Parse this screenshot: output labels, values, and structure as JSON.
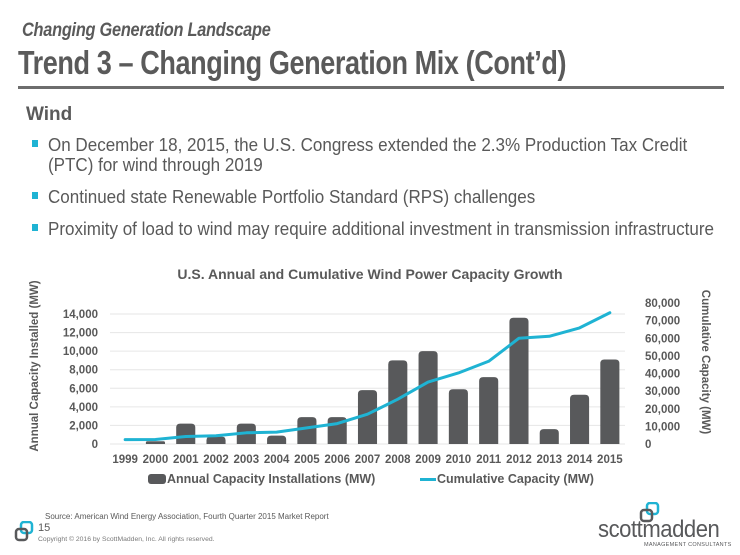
{
  "header": {
    "subtitle": "Changing Generation Landscape",
    "title": "Trend 3 – Changing Generation Mix (Cont’d)"
  },
  "section": {
    "heading": "Wind",
    "bullets": [
      "On December 18, 2015, the U.S. Congress extended the 2.3% Production Tax Credit (PTC) for wind through 2019",
      "Continued state Renewable Portfolio Standard (RPS) challenges",
      "Proximity of load to wind may require additional investment in transmission infrastructure"
    ]
  },
  "colors": {
    "bar": "#58595b",
    "line": "#1fb3d3",
    "bullet": "#1fb3d3",
    "text": "#595959",
    "grid": "#e6e6e6"
  },
  "chart_data": {
    "type": "bar+line",
    "title": "U.S. Annual and Cumulative Wind Power Capacity Growth",
    "categories": [
      "1999",
      "2000",
      "2001",
      "2002",
      "2003",
      "2004",
      "2005",
      "2006",
      "2007",
      "2008",
      "2009",
      "2010",
      "2011",
      "2012",
      "2013",
      "2014",
      "2015"
    ],
    "series": [
      {
        "name": "Annual Capacity Installations (MW)",
        "type": "bar",
        "axis": "left",
        "values": [
          0,
          300,
          2200,
          800,
          2200,
          900,
          2900,
          2900,
          5800,
          9000,
          10000,
          5900,
          7200,
          13600,
          1600,
          5300,
          9100
        ]
      },
      {
        "name": "Cumulative Capacity (MW)",
        "type": "line",
        "axis": "right",
        "values": [
          2472,
          2539,
          4232,
          4687,
          6350,
          6725,
          9147,
          11575,
          16907,
          25410,
          35159,
          40298,
          46929,
          60005,
          61110,
          65877,
          74472
        ]
      }
    ],
    "ylabel": "Annual Capacity Installed (MW)",
    "ylabel_right": "Cumulative Capacity (MW)",
    "ylim": [
      0,
      14000
    ],
    "ylim_right": [
      0,
      80000
    ],
    "yticks": [
      "0",
      "2,000",
      "4,000",
      "6,000",
      "8,000",
      "10,000",
      "12,000",
      "14,000"
    ],
    "yticks_right": [
      "0",
      "10,000",
      "20,000",
      "30,000",
      "40,000",
      "50,000",
      "60,000",
      "70,000",
      "80,000"
    ],
    "grid": true,
    "legend_position": "bottom"
  },
  "footer": {
    "source": "Source:  American Wind Energy Association, Fourth Quarter 2015 Market Report",
    "page_number": "15",
    "copyright": "Copyright © 2016 by ScottMadden,  Inc. All rights reserved.",
    "logo_word": "scottmadden",
    "logo_tagline": "MANAGEMENT CONSULTANTS"
  }
}
